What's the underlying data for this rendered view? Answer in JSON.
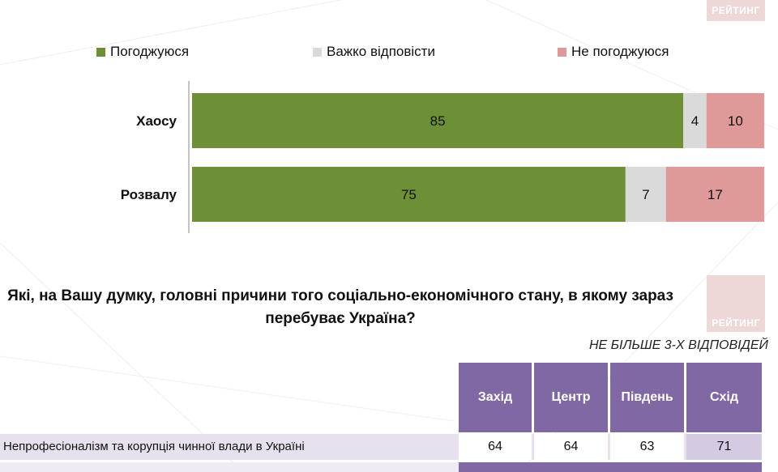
{
  "logo": {
    "text": "РЕЙТИНГ"
  },
  "legend": [
    {
      "label": "Погоджуюся",
      "color": "#6d8f36"
    },
    {
      "label": "Важко відповісти",
      "color": "#dadada"
    },
    {
      "label": "Не погоджуюся",
      "color": "#df9999"
    }
  ],
  "chart_data": {
    "type": "bar",
    "orientation": "horizontal",
    "stacked": true,
    "categories": [
      "Хаосу",
      "Розвалу"
    ],
    "series": [
      {
        "name": "Погоджуюся",
        "values": [
          85,
          75
        ],
        "color": "#6d8f36"
      },
      {
        "name": "Важко відповісти",
        "values": [
          4,
          7
        ],
        "color": "#dadada"
      },
      {
        "name": "Не погоджуюся",
        "values": [
          10,
          17
        ],
        "color": "#df9999"
      }
    ],
    "xlim": [
      0,
      99
    ],
    "legend_position": "top",
    "grid": false
  },
  "question": {
    "line1": "Які, на Вашу думку, головні причини того соціально-економічного стану, в якому зараз",
    "line2": "перебуває Україна?"
  },
  "note": "НЕ БІЛЬШЕ 3-Х ВІДПОВІДЕЙ",
  "table": {
    "columns": [
      "Захід",
      "Центр",
      "Південь",
      "Схід"
    ],
    "rows": [
      {
        "label": "Непрофесіоналізм та корупція чинної влади в Україні",
        "values": [
          "64",
          "64",
          "63",
          "71"
        ]
      }
    ]
  }
}
